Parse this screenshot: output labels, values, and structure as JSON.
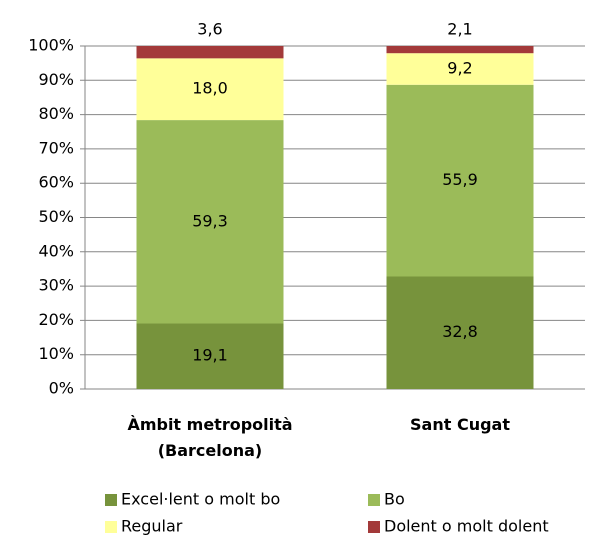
{
  "chart_data": {
    "type": "stacked_bar",
    "categories": [
      "Àmbit metropolità (Barcelona)",
      "Sant Cugat"
    ],
    "series": [
      {
        "name": "Excel·lent o molt bo",
        "color": "#77933c",
        "values": [
          19.1,
          32.8
        ],
        "value_labels": [
          "19,1",
          "32,8"
        ]
      },
      {
        "name": "Bo",
        "color": "#9bbb59",
        "values": [
          59.3,
          55.9
        ],
        "value_labels": [
          "59,3",
          "55,9"
        ]
      },
      {
        "name": "Regular",
        "color": "#ffff99",
        "values": [
          18.0,
          9.2
        ],
        "value_labels": [
          "18,0",
          "9,2"
        ]
      },
      {
        "name": "Dolent o molt dolent",
        "color": "#a33a3a",
        "values": [
          3.6,
          2.1
        ],
        "value_labels": [
          "3,6",
          "2,1"
        ]
      }
    ],
    "ylim": [
      0,
      100
    ],
    "yticks": [
      {
        "value": 0,
        "label": "0%"
      },
      {
        "value": 10,
        "label": "10%"
      },
      {
        "value": 20,
        "label": "20%"
      },
      {
        "value": 30,
        "label": "30%"
      },
      {
        "value": 40,
        "label": "40%"
      },
      {
        "value": 50,
        "label": "50%"
      },
      {
        "value": 60,
        "label": "60%"
      },
      {
        "value": 70,
        "label": "70%"
      },
      {
        "value": 80,
        "label": "80%"
      },
      {
        "value": 90,
        "label": "90%"
      },
      {
        "value": 100,
        "label": "100%"
      }
    ],
    "grid": true
  }
}
